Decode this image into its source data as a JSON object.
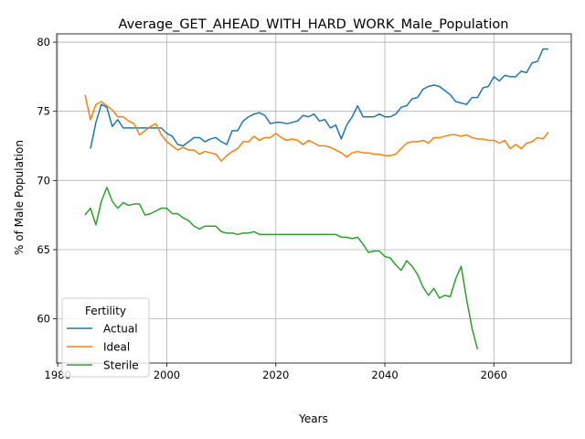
{
  "chart_data": {
    "type": "line",
    "title": "Average_GET_AHEAD_WITH_HARD_WORK_Male_Population",
    "xlabel": "Years",
    "ylabel": "% of Male Population",
    "xlim": [
      1979.8,
      2074.2
    ],
    "ylim": [
      56.8,
      80.6
    ],
    "xticks": [
      1980,
      2000,
      2020,
      2040,
      2060
    ],
    "yticks": [
      60,
      65,
      70,
      75,
      80
    ],
    "grid": true,
    "legend": {
      "title": "Fertility",
      "position": "bottom-left"
    },
    "series": [
      {
        "name": "Actual",
        "color": "#1f77b4",
        "x": [
          1986,
          1987,
          1988,
          1989,
          1990,
          1991,
          1992,
          1993,
          1994,
          1995,
          1996,
          1997,
          1998,
          1999,
          2000,
          2001,
          2002,
          2003,
          2004,
          2005,
          2006,
          2007,
          2008,
          2009,
          2010,
          2011,
          2012,
          2013,
          2014,
          2015,
          2016,
          2017,
          2018,
          2019,
          2020,
          2021,
          2022,
          2023,
          2024,
          2025,
          2026,
          2027,
          2028,
          2029,
          2030,
          2031,
          2032,
          2033,
          2034,
          2035,
          2036,
          2037,
          2038,
          2039,
          2040,
          2041,
          2042,
          2043,
          2044,
          2045,
          2046,
          2047,
          2048,
          2049,
          2050,
          2051,
          2052,
          2053,
          2054,
          2055,
          2056,
          2057,
          2058,
          2059,
          2060,
          2061,
          2062,
          2063,
          2064,
          2065,
          2066,
          2067,
          2068,
          2069,
          2070
        ],
        "y": [
          72.3,
          74.2,
          75.5,
          75.3,
          73.9,
          74.4,
          73.8,
          73.8,
          73.8,
          73.8,
          73.8,
          73.8,
          73.8,
          73.8,
          73.4,
          73.2,
          72.6,
          72.5,
          72.8,
          73.1,
          73.1,
          72.8,
          73.0,
          73.1,
          72.8,
          72.6,
          73.6,
          73.6,
          74.3,
          74.6,
          74.8,
          74.9,
          74.7,
          74.1,
          74.2,
          74.2,
          74.1,
          74.2,
          74.3,
          74.7,
          74.6,
          74.8,
          74.3,
          74.4,
          73.8,
          74.0,
          73.0,
          74.0,
          74.6,
          75.4,
          74.6,
          74.6,
          74.6,
          74.8,
          74.6,
          74.6,
          74.8,
          75.3,
          75.4,
          75.9,
          76.0,
          76.6,
          76.8,
          76.9,
          76.8,
          76.5,
          76.2,
          75.7,
          75.6,
          75.5,
          76.0,
          76.0,
          76.7,
          76.8,
          77.5,
          77.2,
          77.6,
          77.5,
          77.5,
          77.9,
          77.8,
          78.5,
          78.6,
          79.5,
          79.5
        ]
      },
      {
        "name": "Ideal",
        "color": "#ff7f0e",
        "x": [
          1985,
          1986,
          1987,
          1988,
          1989,
          1990,
          1991,
          1992,
          1993,
          1994,
          1995,
          1996,
          1997,
          1998,
          1999,
          2000,
          2001,
          2002,
          2003,
          2004,
          2005,
          2006,
          2007,
          2008,
          2009,
          2010,
          2011,
          2012,
          2013,
          2014,
          2015,
          2016,
          2017,
          2018,
          2019,
          2020,
          2021,
          2022,
          2023,
          2024,
          2025,
          2026,
          2027,
          2028,
          2029,
          2030,
          2031,
          2032,
          2033,
          2034,
          2035,
          2036,
          2037,
          2038,
          2039,
          2040,
          2041,
          2042,
          2043,
          2044,
          2045,
          2046,
          2047,
          2048,
          2049,
          2050,
          2051,
          2052,
          2053,
          2054,
          2055,
          2056,
          2057,
          2058,
          2059,
          2060,
          2061,
          2062,
          2063,
          2064,
          2065,
          2066,
          2067,
          2068,
          2069,
          2070
        ],
        "y": [
          76.2,
          74.4,
          75.5,
          75.7,
          75.4,
          75.1,
          74.6,
          74.6,
          74.3,
          74.1,
          73.3,
          73.6,
          73.9,
          74.1,
          73.3,
          72.8,
          72.5,
          72.2,
          72.4,
          72.2,
          72.2,
          71.9,
          72.1,
          72.0,
          71.9,
          71.4,
          71.8,
          72.1,
          72.3,
          72.8,
          72.8,
          73.2,
          72.9,
          73.1,
          73.1,
          73.4,
          73.1,
          72.9,
          73.0,
          72.9,
          72.6,
          72.9,
          72.7,
          72.5,
          72.5,
          72.4,
          72.2,
          72.0,
          71.7,
          72.0,
          72.1,
          72.0,
          72.0,
          71.9,
          71.9,
          71.8,
          71.8,
          71.9,
          72.3,
          72.7,
          72.8,
          72.8,
          72.9,
          72.7,
          73.1,
          73.1,
          73.2,
          73.3,
          73.3,
          73.2,
          73.3,
          73.1,
          73.0,
          73.0,
          72.9,
          72.9,
          72.7,
          72.9,
          72.3,
          72.6,
          72.3,
          72.7,
          72.8,
          73.1,
          73.0,
          73.5
        ]
      },
      {
        "name": "Sterile",
        "color": "#2ca02c",
        "x": [
          1985,
          1986,
          1987,
          1988,
          1989,
          1990,
          1991,
          1992,
          1993,
          1994,
          1995,
          1996,
          1997,
          1998,
          1999,
          2000,
          2001,
          2002,
          2003,
          2004,
          2005,
          2006,
          2007,
          2008,
          2009,
          2010,
          2011,
          2012,
          2013,
          2014,
          2015,
          2016,
          2017,
          2018,
          2019,
          2020,
          2021,
          2022,
          2023,
          2024,
          2025,
          2026,
          2027,
          2028,
          2029,
          2030,
          2031,
          2032,
          2033,
          2034,
          2035,
          2036,
          2037,
          2038,
          2039,
          2040,
          2041,
          2042,
          2043,
          2044,
          2045,
          2046,
          2047,
          2048,
          2049,
          2050,
          2051,
          2052,
          2053,
          2054,
          2055,
          2056,
          2057
        ],
        "y": [
          67.5,
          68.0,
          66.8,
          68.5,
          69.5,
          68.5,
          68.0,
          68.4,
          68.2,
          68.3,
          68.3,
          67.5,
          67.6,
          67.8,
          68.0,
          68.0,
          67.6,
          67.6,
          67.3,
          67.1,
          66.7,
          66.5,
          66.7,
          66.7,
          66.7,
          66.3,
          66.2,
          66.2,
          66.1,
          66.2,
          66.2,
          66.3,
          66.1,
          66.1,
          66.1,
          66.1,
          66.1,
          66.1,
          66.1,
          66.1,
          66.1,
          66.1,
          66.1,
          66.1,
          66.1,
          66.1,
          66.1,
          65.9,
          65.9,
          65.8,
          65.9,
          65.4,
          64.8,
          64.9,
          64.9,
          64.5,
          64.4,
          63.9,
          63.5,
          64.2,
          63.8,
          63.2,
          62.3,
          61.7,
          62.2,
          61.5,
          61.7,
          61.6,
          62.9,
          63.8,
          61.4,
          59.3,
          57.8
        ]
      }
    ]
  }
}
